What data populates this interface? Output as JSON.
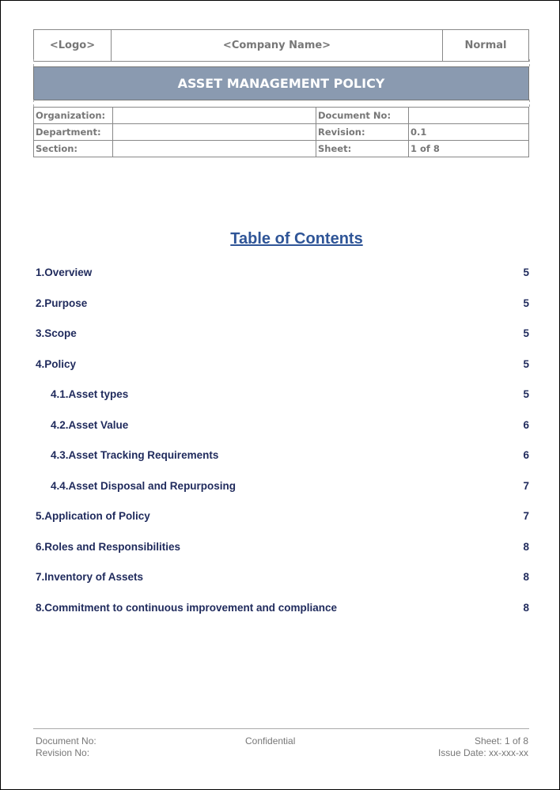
{
  "header": {
    "logo": "<Logo>",
    "company": "<Company Name>",
    "classification": "Normal",
    "title": "ASSET MANAGEMENT POLICY",
    "fields": [
      {
        "label": "Organization:",
        "value": "",
        "label2": "Document No:",
        "value2": ""
      },
      {
        "label": "Department:",
        "value": "",
        "label2": "Revision:",
        "value2": "0.1"
      },
      {
        "label": "Section:",
        "value": "",
        "label2": "Sheet:",
        "value2": "1 of 8"
      }
    ]
  },
  "toc": {
    "title": "Table of Contents",
    "entries": [
      {
        "label": "1.Overview",
        "page": "5",
        "level": 1
      },
      {
        "label": "2.Purpose",
        "page": "5",
        "level": 1
      },
      {
        "label": "3.Scope",
        "page": "5",
        "level": 1
      },
      {
        "label": "4.Policy",
        "page": "5",
        "level": 1
      },
      {
        "label": "4.1.Asset types",
        "page": "5",
        "level": 2
      },
      {
        "label": "4.2.Asset Value",
        "page": "6",
        "level": 2
      },
      {
        "label": "4.3.Asset Tracking Requirements",
        "page": "6",
        "level": 2
      },
      {
        "label": "4.4.Asset Disposal and Repurposing",
        "page": "7",
        "level": 2
      },
      {
        "label": "5.Application of Policy",
        "page": "7",
        "level": 1
      },
      {
        "label": "6.Roles and Responsibilities",
        "page": "8",
        "level": 1
      },
      {
        "label": "7.Inventory of Assets",
        "page": "8",
        "level": 1
      },
      {
        "label": "8.Commitment to continuous improvement and compliance",
        "page": "8",
        "level": 1
      }
    ]
  },
  "footer": {
    "document_no": "Document No:",
    "revision_no": "Revision No:",
    "confidential": "Confidential",
    "sheet": "Sheet: 1 of 8",
    "issue_date": "Issue Date: xx-xxx-xx"
  }
}
